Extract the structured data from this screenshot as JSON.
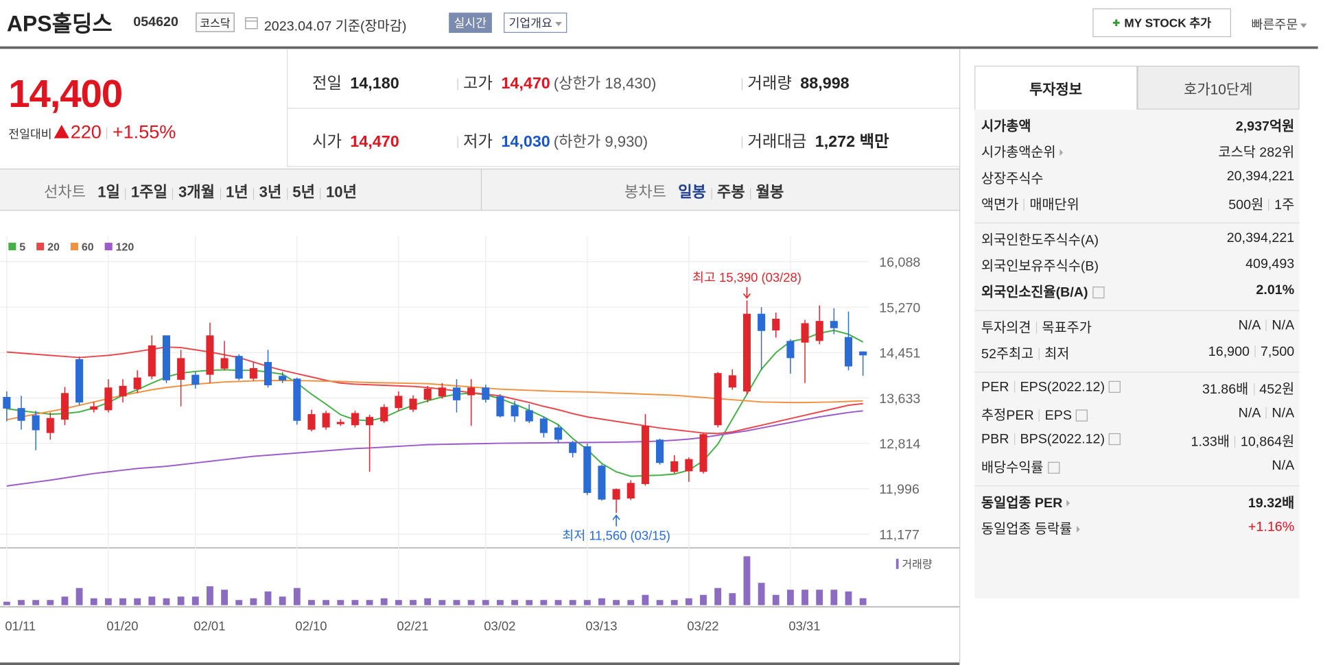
{
  "header": {
    "name": "APS홀딩스",
    "code": "054620",
    "market": "코스닥",
    "date": "2023.04.07",
    "basis": "기준(장마감)",
    "realtime": "실시간",
    "overview": "기업개요",
    "mystock": "MY STOCK 추가",
    "quick": "빠른주문"
  },
  "price": {
    "current": "14,400",
    "change_label": "전일대비",
    "change": "220",
    "change_pct": "+1.55%"
  },
  "summary": [
    {
      "label": "전일",
      "value": "14,180"
    },
    {
      "label": "고가",
      "value": "14,470",
      "note": "(상한가 18,430)"
    },
    {
      "label": "거래량",
      "value": "88,998"
    },
    {
      "label": "시가",
      "value": "14,470"
    },
    {
      "label": "저가",
      "value": "14,030",
      "note": "(하한가 9,930)"
    },
    {
      "label": "거래대금",
      "value": "1,272",
      "unit": "백만"
    }
  ],
  "tabs": {
    "line_label": "선차트",
    "line_tabs": [
      "1일",
      "1주일",
      "3개월",
      "1년",
      "3년",
      "5년",
      "10년"
    ],
    "candle_label": "봉차트",
    "candle_tabs": [
      "일봉",
      "주봉",
      "월봉"
    ]
  },
  "chart_data": {
    "type": "candlestick",
    "categories": [
      "01/11",
      null,
      null,
      null,
      null,
      null,
      null,
      "01/20",
      null,
      null,
      null,
      null,
      null,
      "02/01",
      null,
      null,
      null,
      null,
      null,
      null,
      "02/10",
      null,
      null,
      null,
      null,
      null,
      null,
      "02/21",
      null,
      null,
      null,
      null,
      null,
      "03/02",
      null,
      null,
      null,
      null,
      null,
      null,
      "03/13",
      null,
      null,
      null,
      null,
      null,
      null,
      "03/22",
      null,
      null,
      null,
      null,
      null,
      null,
      "03/31",
      null,
      null,
      null,
      null,
      null
    ],
    "open": [
      13650,
      13450,
      13320,
      13000,
      13240,
      14330,
      13420,
      13410,
      13660,
      13790,
      14020,
      14760,
      13960,
      14050,
      14050,
      14160,
      14390,
      13980,
      14280,
      14030,
      13980,
      13060,
      13100,
      13160,
      13140,
      13140,
      13210,
      13450,
      13420,
      13600,
      13660,
      13820,
      13680,
      13820,
      13660,
      13500,
      13410,
      13260,
      13100,
      12830,
      12760,
      12410,
      11800,
      11820,
      12080,
      12880,
      12300,
      12310,
      12300,
      13140,
      13820,
      13750,
      15150,
      14850,
      14660,
      14630,
      14660,
      15020,
      14730,
      14470
    ],
    "high": [
      13750,
      13670,
      13400,
      13370,
      13830,
      14380,
      13560,
      13970,
      13970,
      14130,
      14760,
      14760,
      14500,
      14100,
      14990,
      14660,
      14420,
      14280,
      14500,
      14100,
      14000,
      13420,
      13400,
      13250,
      13400,
      13330,
      13520,
      13750,
      13680,
      13850,
      13900,
      13970,
      13970,
      13870,
      13700,
      13580,
      13520,
      13300,
      13150,
      12860,
      12810,
      12430,
      12000,
      12150,
      13340,
      12900,
      12600,
      12560,
      13000,
      14100,
      14150,
      15390,
      15270,
      15170,
      14690,
      15040,
      15300,
      15250,
      15190,
      14470
    ],
    "low": [
      13210,
      13060,
      12690,
      12880,
      13140,
      13500,
      13370,
      13370,
      13550,
      13720,
      13970,
      13900,
      13480,
      13800,
      13900,
      14130,
      13950,
      13940,
      13820,
      13900,
      13150,
      13030,
      13060,
      13130,
      13100,
      12300,
      13180,
      13400,
      13380,
      13550,
      13620,
      13370,
      13130,
      13550,
      13280,
      13200,
      13180,
      12920,
      12820,
      12560,
      11880,
      11780,
      11560,
      11790,
      12050,
      12430,
      12270,
      12120,
      12270,
      13100,
      13780,
      13700,
      14130,
      14720,
      14070,
      13900,
      14600,
      14780,
      14130,
      14030
    ],
    "close": [
      13440,
      13220,
      13050,
      13270,
      13720,
      13550,
      13480,
      13820,
      13850,
      14000,
      14580,
      13950,
      14350,
      13870,
      14760,
      14350,
      13980,
      14170,
      13860,
      13950,
      13220,
      13340,
      13360,
      13200,
      13360,
      13290,
      13470,
      13670,
      13620,
      13800,
      13820,
      13590,
      13820,
      13600,
      13300,
      13300,
      13210,
      13000,
      12880,
      12640,
      11920,
      11800,
      11990,
      12100,
      13130,
      12460,
      12490,
      12530,
      12980,
      14080,
      14040,
      15150,
      14840,
      15060,
      14350,
      14980,
      15020,
      14890,
      14200,
      14400
    ],
    "up_color": "#e0262c",
    "down_color": "#2a6bd6",
    "series": [
      {
        "name": "5",
        "color": "#44b047",
        "values": [
          13440,
          13400,
          13370,
          13340,
          13350,
          13380,
          13450,
          13550,
          13680,
          13780,
          13900,
          14010,
          14080,
          14110,
          14130,
          14140,
          14130,
          14130,
          14100,
          14060,
          13900,
          13700,
          13520,
          13330,
          13240,
          13220,
          13280,
          13400,
          13500,
          13580,
          13650,
          13700,
          13720,
          13690,
          13620,
          13520,
          13410,
          13290,
          13150,
          12900,
          12700,
          12450,
          12300,
          12220,
          12230,
          12240,
          12260,
          12330,
          12500,
          12800,
          13250,
          13700,
          14150,
          14450,
          14650,
          14700,
          14800,
          14850,
          14780,
          14640
        ]
      },
      {
        "name": "20",
        "color": "#e8474b",
        "values": [
          14460,
          14440,
          14420,
          14400,
          14380,
          14360,
          14380,
          14400,
          14430,
          14470,
          14510,
          14550,
          14540,
          14500,
          14460,
          14410,
          14360,
          14280,
          14200,
          14130,
          14070,
          14010,
          13950,
          13900,
          13880,
          13870,
          13860,
          13850,
          13840,
          13820,
          13790,
          13760,
          13730,
          13700,
          13670,
          13610,
          13550,
          13480,
          13420,
          13350,
          13290,
          13250,
          13210,
          13170,
          13130,
          13090,
          13060,
          13030,
          13000,
          12990,
          13020,
          13080,
          13140,
          13200,
          13260,
          13320,
          13380,
          13440,
          13500,
          13530
        ]
      },
      {
        "name": "60",
        "color": "#f0913f",
        "values": [
          13240,
          13290,
          13340,
          13390,
          13440,
          13500,
          13560,
          13620,
          13680,
          13730,
          13780,
          13820,
          13850,
          13880,
          13900,
          13920,
          13930,
          13940,
          13945,
          13945,
          13945,
          13940,
          13935,
          13930,
          13920,
          13910,
          13905,
          13900,
          13895,
          13890,
          13870,
          13850,
          13830,
          13810,
          13790,
          13780,
          13770,
          13760,
          13750,
          13745,
          13740,
          13730,
          13720,
          13710,
          13700,
          13690,
          13680,
          13660,
          13640,
          13620,
          13600,
          13580,
          13560,
          13555,
          13550,
          13550,
          13555,
          13560,
          13570,
          13580
        ]
      },
      {
        "name": "120",
        "color": "#9b5cc9",
        "values": [
          12045,
          12080,
          12115,
          12150,
          12190,
          12230,
          12270,
          12300,
          12330,
          12360,
          12380,
          12400,
          12430,
          12460,
          12490,
          12520,
          12550,
          12580,
          12600,
          12620,
          12640,
          12660,
          12680,
          12700,
          12720,
          12730,
          12745,
          12760,
          12775,
          12790,
          12795,
          12800,
          12805,
          12810,
          12815,
          12818,
          12820,
          12822,
          12825,
          12828,
          12830,
          12832,
          12835,
          12840,
          12845,
          12855,
          12870,
          12890,
          12920,
          12960,
          13000,
          13040,
          13090,
          13140,
          13190,
          13240,
          13290,
          13330,
          13370,
          13400
        ]
      }
    ],
    "volume": {
      "name": "거래량",
      "color": "#8c6cc0",
      "values": [
        44000,
        66000,
        66000,
        66000,
        110000,
        220000,
        88000,
        88000,
        88000,
        88000,
        110000,
        88000,
        110000,
        110000,
        242000,
        198000,
        66000,
        88000,
        176000,
        110000,
        220000,
        66000,
        66000,
        66000,
        66000,
        66000,
        88000,
        66000,
        66000,
        88000,
        66000,
        66000,
        66000,
        66000,
        66000,
        66000,
        66000,
        66000,
        66000,
        66000,
        66000,
        88000,
        66000,
        66000,
        132000,
        66000,
        66000,
        88000,
        132000,
        220000,
        154000,
        627000,
        286000,
        132000,
        198000,
        198000,
        198000,
        198000,
        176000,
        88998
      ]
    },
    "ylim": [
      10960,
      16400
    ],
    "yticks": [
      {
        "value": 16088,
        "label": "16,088"
      },
      {
        "value": 15270,
        "label": "15,270"
      },
      {
        "value": 14451,
        "label": "14,451"
      },
      {
        "value": 13633,
        "label": "13,633"
      },
      {
        "value": 12814,
        "label": "12,814"
      },
      {
        "value": 11996,
        "label": "11,996"
      },
      {
        "value": 11177,
        "label": "11,177"
      }
    ],
    "grid": true,
    "annotations": {
      "high": "최고 15,390 (03/28)",
      "low": "최저 11,560 (03/15)"
    }
  },
  "invest": {
    "tabs": [
      "투자정보",
      "호가10단계"
    ],
    "rows": [
      {
        "label": [
          "시가총액"
        ],
        "value": [
          "2,937억원"
        ]
      },
      {
        "label": [
          "시가총액순위"
        ],
        "value": [
          "코스닥 282위"
        ]
      },
      {
        "label": [
          "상장주식수"
        ],
        "value": [
          "20,394,221"
        ]
      },
      {
        "label": [
          "액면가",
          "매매단위"
        ],
        "value": [
          "500원",
          "1주"
        ]
      },
      {
        "label": [
          "외국인한도주식수(A)"
        ],
        "value": [
          "20,394,221"
        ]
      },
      {
        "label": [
          "외국인보유주식수(B)"
        ],
        "value": [
          "409,493"
        ]
      },
      {
        "label": [
          "외국인소진율(B/A)"
        ],
        "value": [
          "2.01%"
        ]
      },
      {
        "label": [
          "투자의견",
          "목표주가"
        ],
        "value": [
          "N/A",
          "N/A"
        ]
      },
      {
        "label": [
          "52주최고",
          "최저"
        ],
        "value": [
          "16,900",
          "7,500"
        ]
      },
      {
        "label": [
          "PER",
          "EPS(2022.12)"
        ],
        "value": [
          "31.86배",
          "452원"
        ]
      },
      {
        "label": [
          "추정PER",
          "EPS"
        ],
        "value": [
          "N/A",
          "N/A"
        ]
      },
      {
        "label": [
          "PBR",
          "BPS(2022.12)"
        ],
        "value": [
          "1.33배",
          "10,864원"
        ]
      },
      {
        "label": [
          "배당수익률"
        ],
        "value": [
          "N/A"
        ]
      },
      {
        "label": [
          "동일업종 PER"
        ],
        "value": [
          "19.32배"
        ]
      },
      {
        "label": [
          "동일업종 등락률"
        ],
        "value": [
          "+1.16%"
        ]
      }
    ]
  }
}
